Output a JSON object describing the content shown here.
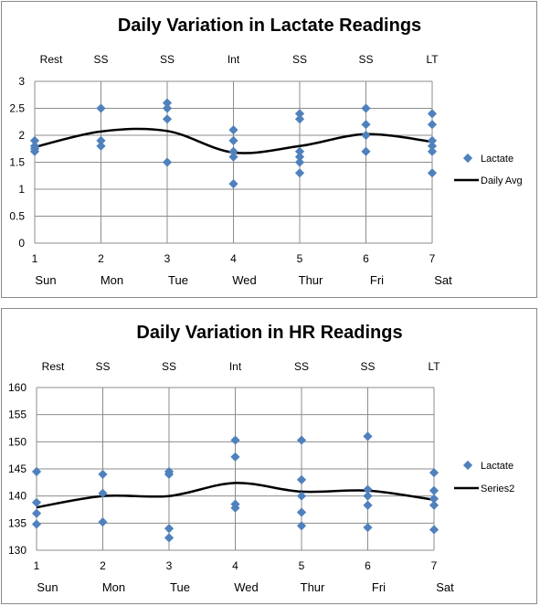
{
  "chart_data": [
    {
      "type": "scatter",
      "title": "Daily Variation in Lactate Readings",
      "x": [
        1,
        2,
        3,
        4,
        5,
        6,
        7
      ],
      "x_tick_labels": [
        "1",
        "2",
        "3",
        "4",
        "5",
        "6",
        "7"
      ],
      "day_labels": [
        "Sun",
        "Mon",
        "Tue",
        "Wed",
        "Thur",
        "Fri",
        "Sat"
      ],
      "session_labels": [
        "Rest",
        "SS",
        "SS",
        "Int",
        "SS",
        "SS",
        "LT"
      ],
      "ylim": [
        0,
        3
      ],
      "y_ticks": [
        0,
        0.5,
        1,
        1.5,
        2,
        2.5,
        3
      ],
      "y_tick_labels": [
        "0",
        "0.5",
        "1",
        "1.5",
        "2",
        "2.5",
        "3"
      ],
      "grid": true,
      "legend_position": "right",
      "series": [
        {
          "name": "Lactate",
          "kind": "scatter",
          "color": "#4f81bd",
          "points": [
            [
              1,
              1.9
            ],
            [
              1,
              1.8
            ],
            [
              1,
              1.7
            ],
            [
              1,
              1.75
            ],
            [
              2,
              2.5
            ],
            [
              2,
              1.9
            ],
            [
              2,
              1.8
            ],
            [
              3,
              2.6
            ],
            [
              3,
              2.5
            ],
            [
              3,
              2.3
            ],
            [
              3,
              1.5
            ],
            [
              4,
              2.1
            ],
            [
              4,
              1.9
            ],
            [
              4,
              1.7
            ],
            [
              4,
              1.6
            ],
            [
              4,
              1.1
            ],
            [
              5,
              2.4
            ],
            [
              5,
              2.3
            ],
            [
              5,
              1.7
            ],
            [
              5,
              1.6
            ],
            [
              5,
              1.5
            ],
            [
              5,
              1.3
            ],
            [
              6,
              2.5
            ],
            [
              6,
              2.2
            ],
            [
              6,
              2.0
            ],
            [
              6,
              1.7
            ],
            [
              7,
              2.4
            ],
            [
              7,
              2.2
            ],
            [
              7,
              1.9
            ],
            [
              7,
              1.8
            ],
            [
              7,
              1.7
            ],
            [
              7,
              1.3
            ]
          ]
        },
        {
          "name": "Daily Avg",
          "kind": "line",
          "color": "#000000",
          "x": [
            1,
            2,
            3,
            4,
            5,
            6,
            7
          ],
          "values": [
            1.78,
            2.07,
            2.08,
            1.68,
            1.8,
            2.02,
            1.88
          ]
        }
      ]
    },
    {
      "type": "scatter",
      "title": "Daily Variation in HR Readings",
      "x": [
        1,
        2,
        3,
        4,
        5,
        6,
        7
      ],
      "x_tick_labels": [
        "1",
        "2",
        "3",
        "4",
        "5",
        "6",
        "7"
      ],
      "day_labels": [
        "Sun",
        "Mon",
        "Tue",
        "Wed",
        "Thur",
        "Fri",
        "Sat"
      ],
      "session_labels": [
        "Rest",
        "SS",
        "SS",
        "Int",
        "SS",
        "SS",
        "LT"
      ],
      "ylim": [
        130,
        160
      ],
      "y_ticks": [
        130,
        135,
        140,
        145,
        150,
        155,
        160
      ],
      "y_tick_labels": [
        "130",
        "135",
        "140",
        "145",
        "150",
        "155",
        "160"
      ],
      "grid": true,
      "legend_position": "right",
      "series": [
        {
          "name": "Lactate",
          "kind": "scatter",
          "color": "#4f81bd",
          "points": [
            [
              1,
              144.5
            ],
            [
              1,
              138.8
            ],
            [
              1,
              136.8
            ],
            [
              1,
              134.8
            ],
            [
              2,
              144.0
            ],
            [
              2,
              140.5
            ],
            [
              2,
              135.2
            ],
            [
              3,
              144.5
            ],
            [
              3,
              144.0
            ],
            [
              3,
              134.0
            ],
            [
              3,
              132.3
            ],
            [
              4,
              150.3
            ],
            [
              4,
              147.2
            ],
            [
              4,
              138.5
            ],
            [
              4,
              137.8
            ],
            [
              5,
              150.3
            ],
            [
              5,
              143.0
            ],
            [
              5,
              140.0
            ],
            [
              5,
              137.0
            ],
            [
              5,
              134.5
            ],
            [
              6,
              151.0
            ],
            [
              6,
              141.2
            ],
            [
              6,
              140.0
            ],
            [
              6,
              138.3
            ],
            [
              6,
              134.2
            ],
            [
              7,
              144.3
            ],
            [
              7,
              141.0
            ],
            [
              7,
              139.5
            ],
            [
              7,
              138.3
            ],
            [
              7,
              133.8
            ]
          ]
        },
        {
          "name": "Series2",
          "kind": "line",
          "color": "#000000",
          "x": [
            1,
            2,
            3,
            4,
            5,
            6,
            7
          ],
          "values": [
            137.9,
            140.0,
            140.0,
            142.4,
            140.8,
            141.0,
            139.3
          ]
        }
      ]
    }
  ]
}
